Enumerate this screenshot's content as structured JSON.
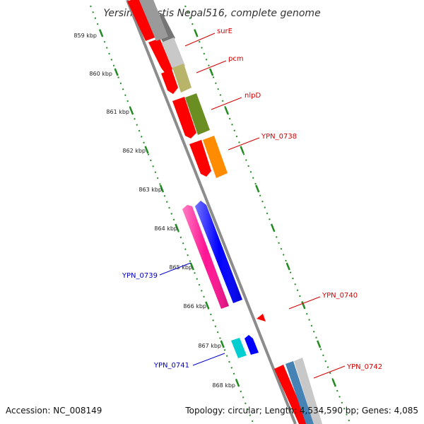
{
  "title": "Yersinia pestis Nepal516, complete genome",
  "footer": {
    "accession": "Accession: NC_008149",
    "summary": "Topology: circular; Length: 4,534,590 bp; Genes: 4,085"
  },
  "scale": {
    "tick_labels": [
      "859 kbp",
      "860 kbp",
      "861 kbp",
      "862 kbp",
      "863 kbp",
      "864 kbp",
      "865 kbp",
      "866 kbp",
      "867 kbp",
      "868 kbp"
    ]
  },
  "colors": {
    "backbone": "#8c8c8c",
    "cds": "#ff0000",
    "scale_ticks": "#228b22",
    "forward_label": "#d40000",
    "reverse_label": "#0000c8"
  },
  "genes": [
    {
      "label": "surE",
      "strand": "forward",
      "color": "#9a9a9a"
    },
    {
      "label": "pcm",
      "strand": "forward",
      "color": "#c9c9c9"
    },
    {
      "label": "nlpD",
      "strand": "forward",
      "color": "#b8b46a"
    },
    {
      "label": "YPN_0738",
      "strand": "forward",
      "color": "#6b8e23"
    },
    {
      "label": "YPN_0739",
      "strand": "reverse",
      "color": "#ff1493"
    },
    {
      "label": "YPN_0740",
      "strand": "forward",
      "color": "#0000ff"
    },
    {
      "label": "YPN_0741",
      "strand": "reverse",
      "color": "#00ced1"
    },
    {
      "label": "YPN_0742",
      "strand": "forward",
      "color": "#4682b4"
    }
  ]
}
